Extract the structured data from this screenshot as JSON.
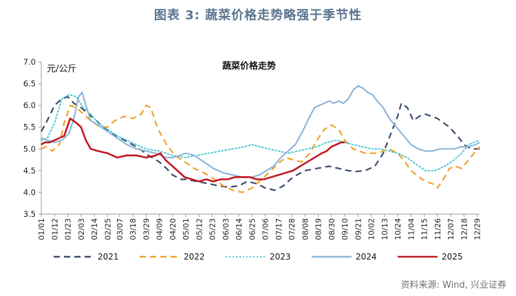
{
  "figure_title": "图表 3:  蔬菜价格走势略强于季节性",
  "source_note": "资料来源: Wind, 兴业证券",
  "chart_data": {
    "type": "line",
    "title": "蔬菜价格走势",
    "ylabel": "元/公斤",
    "ylim": [
      3.5,
      7.0
    ],
    "yticks": [
      "3.5",
      "4.0",
      "4.5",
      "5.0",
      "5.5",
      "6.0",
      "6.5",
      "7.0"
    ],
    "x_tick_labels": [
      "01/01",
      "01/12",
      "01/23",
      "02/03",
      "02/14",
      "02/25",
      "03/07",
      "03/18",
      "03/29",
      "04/09",
      "04/20",
      "05/01",
      "05/12",
      "05/23",
      "06/03",
      "06/14",
      "06/25",
      "07/06",
      "07/17",
      "07/28",
      "08/08",
      "08/19",
      "08/30",
      "09/10",
      "09/21",
      "10/02",
      "10/13",
      "10/24",
      "11/04",
      "11/15",
      "11/26",
      "12/07",
      "12/18",
      "12/29"
    ],
    "x_day_of_year": [
      1,
      12,
      23,
      34,
      45,
      56,
      66,
      77,
      88,
      99,
      110,
      121,
      132,
      143,
      154,
      165,
      176,
      187,
      198,
      209,
      220,
      231,
      242,
      253,
      264,
      275,
      286,
      297,
      308,
      319,
      330,
      341,
      352,
      363
    ],
    "grid": false,
    "legend_position": "bottom",
    "series": [
      {
        "name": "2021",
        "color": "#3b4a6b",
        "style": "dash",
        "x": [
          1,
          5,
          12,
          18,
          23,
          28,
          34,
          38,
          45,
          52,
          60,
          70,
          80,
          90,
          99,
          105,
          110,
          117,
          121,
          130,
          140,
          148,
          156,
          165,
          172,
          180,
          187,
          195,
          202,
          210,
          220,
          230,
          240,
          248,
          256,
          262,
          270,
          278,
          285,
          292,
          297,
          300,
          305,
          310,
          315,
          320,
          330,
          340,
          348,
          352,
          358,
          365
        ],
        "y": [
          5.4,
          5.6,
          6.0,
          6.15,
          6.2,
          6.05,
          5.95,
          5.85,
          5.7,
          5.5,
          5.35,
          5.2,
          5.05,
          4.85,
          4.7,
          4.55,
          4.4,
          4.3,
          4.3,
          4.25,
          4.2,
          4.15,
          4.12,
          4.15,
          4.25,
          4.2,
          4.1,
          4.05,
          4.15,
          4.35,
          4.5,
          4.55,
          4.6,
          4.55,
          4.5,
          4.48,
          4.5,
          4.6,
          4.9,
          5.4,
          5.75,
          6.05,
          5.95,
          5.65,
          5.75,
          5.8,
          5.7,
          5.5,
          5.25,
          5.1,
          5.0,
          5.0
        ]
      },
      {
        "name": "2022",
        "color": "#f0a028",
        "style": "dash",
        "x": [
          1,
          5,
          10,
          16,
          20,
          25,
          30,
          36,
          42,
          50,
          56,
          62,
          70,
          77,
          84,
          88,
          92,
          96,
          99,
          105,
          112,
          120,
          128,
          136,
          145,
          152,
          160,
          168,
          176,
          182,
          190,
          197,
          204,
          210,
          217,
          224,
          230,
          236,
          242,
          248,
          253,
          260,
          270,
          280,
          290,
          297,
          302,
          308,
          315,
          320,
          326,
          330,
          335,
          340,
          345,
          350,
          356,
          362,
          365
        ],
        "y": [
          5.0,
          5.05,
          4.95,
          5.1,
          5.6,
          6.0,
          5.95,
          5.8,
          5.65,
          5.5,
          5.5,
          5.65,
          5.75,
          5.7,
          5.8,
          6.0,
          5.95,
          5.6,
          5.4,
          5.1,
          4.85,
          4.7,
          4.55,
          4.45,
          4.3,
          4.15,
          4.05,
          4.0,
          4.1,
          4.25,
          4.45,
          4.65,
          4.8,
          4.75,
          4.7,
          4.9,
          5.2,
          5.45,
          5.55,
          5.45,
          5.2,
          5.0,
          4.9,
          4.9,
          5.0,
          4.9,
          4.75,
          4.5,
          4.35,
          4.25,
          4.2,
          4.1,
          4.3,
          4.55,
          4.6,
          4.55,
          4.75,
          4.95,
          5.05
        ]
      },
      {
        "name": "2023",
        "color": "#3cc4cc",
        "style": "dot",
        "x": [
          1,
          6,
          12,
          18,
          24,
          30,
          36,
          42,
          48,
          56,
          64,
          72,
          80,
          88,
          99,
          110,
          121,
          130,
          140,
          150,
          160,
          170,
          176,
          182,
          190,
          198,
          206,
          214,
          222,
          230,
          238,
          246,
          253,
          260,
          268,
          275,
          282,
          290,
          297,
          305,
          312,
          320,
          328,
          336,
          344,
          350,
          356,
          365
        ],
        "y": [
          5.2,
          5.25,
          5.6,
          6.15,
          6.25,
          6.2,
          5.95,
          5.8,
          5.6,
          5.45,
          5.3,
          5.2,
          5.1,
          5.0,
          4.95,
          4.85,
          4.8,
          4.85,
          4.9,
          4.95,
          5.0,
          5.05,
          5.1,
          5.05,
          5.0,
          4.95,
          4.9,
          4.95,
          5.0,
          5.05,
          5.15,
          5.2,
          5.15,
          5.1,
          5.05,
          5.0,
          5.0,
          4.95,
          4.9,
          4.8,
          4.65,
          4.5,
          4.5,
          4.6,
          4.75,
          4.9,
          5.1,
          5.2
        ]
      },
      {
        "name": "2024",
        "color": "#8fb6d8",
        "style": "solid",
        "x": [
          1,
          6,
          12,
          18,
          24,
          28,
          32,
          35,
          38,
          42,
          48,
          56,
          64,
          72,
          80,
          88,
          96,
          104,
          110,
          116,
          121,
          128,
          136,
          144,
          152,
          160,
          168,
          176,
          182,
          188,
          194,
          200,
          206,
          212,
          218,
          224,
          228,
          232,
          236,
          240,
          244,
          248,
          252,
          256,
          260,
          264,
          268,
          272,
          276,
          280,
          285,
          290,
          296,
          302,
          308,
          314,
          320,
          326,
          332,
          338,
          344,
          350,
          356,
          362,
          365
        ],
        "y": [
          5.25,
          5.2,
          5.15,
          5.2,
          5.35,
          5.7,
          6.2,
          6.3,
          6.0,
          5.65,
          5.55,
          5.4,
          5.25,
          5.1,
          5.0,
          4.95,
          4.9,
          4.8,
          4.8,
          4.85,
          4.9,
          4.85,
          4.7,
          4.55,
          4.45,
          4.4,
          4.35,
          4.35,
          4.4,
          4.5,
          4.6,
          4.8,
          4.95,
          5.1,
          5.4,
          5.75,
          5.95,
          6.0,
          6.05,
          6.1,
          6.05,
          6.1,
          6.05,
          6.15,
          6.35,
          6.45,
          6.4,
          6.3,
          6.25,
          6.1,
          5.95,
          5.7,
          5.5,
          5.3,
          5.1,
          5.0,
          4.95,
          4.95,
          5.0,
          5.0,
          5.0,
          5.05,
          5.05,
          5.1,
          5.15
        ]
      },
      {
        "name": "2025",
        "color": "#c01820",
        "style": "solid",
        "x": [
          1,
          4,
          8,
          12,
          16,
          20,
          25,
          30,
          34,
          38,
          42,
          48,
          56,
          64,
          72,
          80,
          88,
          96,
          100,
          104,
          110,
          116,
          120,
          126,
          132,
          138,
          144,
          150,
          156,
          162,
          168,
          174,
          180,
          186,
          192,
          198,
          204,
          210,
          216,
          222,
          228,
          234,
          238,
          242,
          246,
          250,
          253
        ],
        "y": [
          5.1,
          5.15,
          5.15,
          5.2,
          5.25,
          5.3,
          5.7,
          5.6,
          5.5,
          5.2,
          5.0,
          4.95,
          4.9,
          4.8,
          4.85,
          4.85,
          4.8,
          4.85,
          4.9,
          4.75,
          4.6,
          4.45,
          4.35,
          4.3,
          4.25,
          4.3,
          4.25,
          4.3,
          4.3,
          4.35,
          4.35,
          4.35,
          4.3,
          4.3,
          4.35,
          4.4,
          4.45,
          4.5,
          4.6,
          4.7,
          4.8,
          4.9,
          4.95,
          5.05,
          5.1,
          5.15,
          5.15
        ]
      }
    ]
  }
}
